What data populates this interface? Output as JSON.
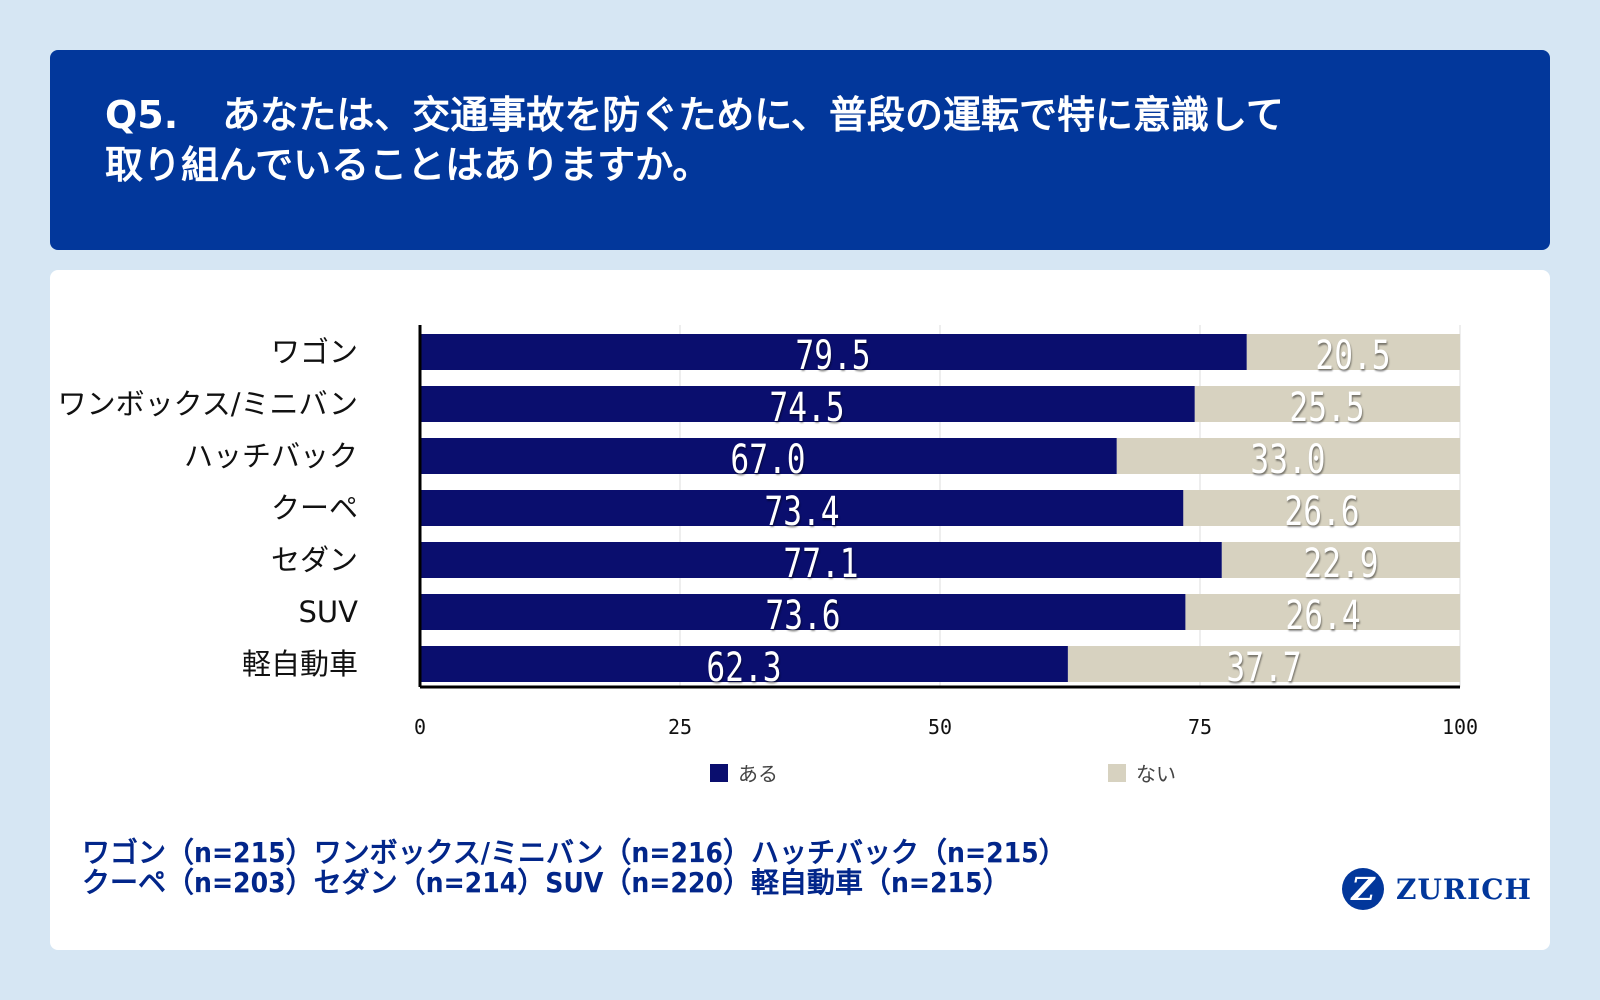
{
  "header": {
    "question_number": "Q5.",
    "question_line1": "あなたは、交通事故を防ぐために、普段の運転で特に意識して",
    "question_line2": "取り組んでいることはありますか。"
  },
  "chart_data": {
    "type": "bar",
    "orientation": "horizontal",
    "stacked": true,
    "categories": [
      "ワゴン",
      "ワンボックス/ミニバン",
      "ハッチバック",
      "クーペ",
      "セダン",
      "SUV",
      "軽自動車"
    ],
    "series": [
      {
        "name": "ある",
        "color": "#0a0e6e",
        "values": [
          79.5,
          74.5,
          67.0,
          73.4,
          77.1,
          73.6,
          62.3
        ]
      },
      {
        "name": "ない",
        "color": "#d7d2c0",
        "values": [
          20.5,
          25.5,
          33.0,
          26.6,
          22.9,
          26.4,
          37.7
        ]
      }
    ],
    "xlim": [
      0,
      100
    ],
    "xticks": [
      "0",
      "25",
      "50",
      "75",
      "100"
    ],
    "xtick_values": [
      0,
      25,
      50,
      75,
      100
    ],
    "grid": true,
    "legend": "bottom-center"
  },
  "footnote": {
    "line1": "ワゴン（n=215）ワンボックス/ミニバン（n=216）ハッチバック（n=215）",
    "line2": "クーペ（n=203）セダン（n=214）SUV（n=220）軽自動車（n=215）"
  },
  "logo": {
    "mark": "Z",
    "text": "ZURICH"
  }
}
